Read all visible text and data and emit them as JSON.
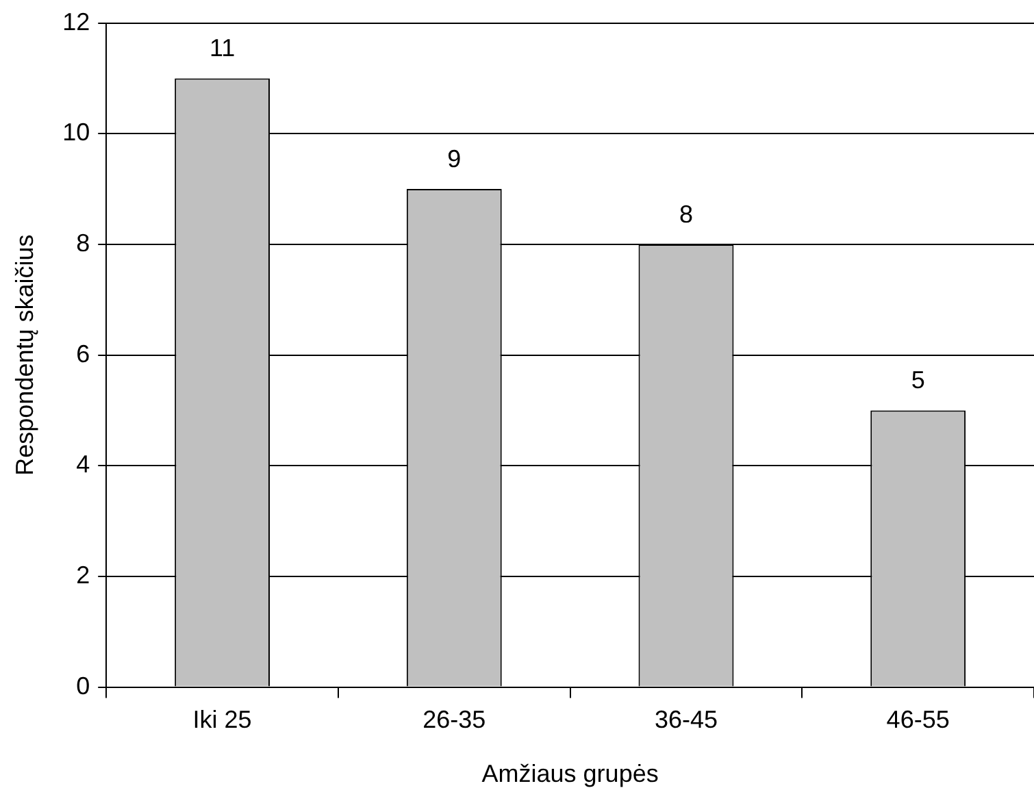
{
  "chart_data": {
    "type": "bar",
    "xlabel": "Amžiaus grupės",
    "ylabel": "Respondentų skaičius",
    "categories": [
      "Iki 25",
      "26-35",
      "36-45",
      "46-55"
    ],
    "values": [
      11,
      9,
      8,
      5
    ],
    "color": "#c0c0c0",
    "ylim": [
      0,
      12
    ],
    "yticks": [
      0,
      2,
      4,
      6,
      8,
      10,
      12
    ],
    "grid": "y",
    "legend": false,
    "data_labels": true
  }
}
